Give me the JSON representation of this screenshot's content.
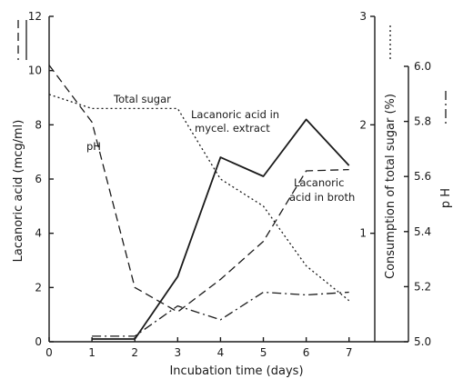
{
  "chart_data": {
    "type": "line",
    "title": "",
    "xlabel": "Incubation time (days)",
    "ylabel_left": "Lacanoric acid (mcg/ml)",
    "ylabel_right1": "Consumption of total sugar (%)",
    "ylabel_right2": "p H",
    "x_ticks": [
      0,
      1,
      2,
      3,
      4,
      5,
      6,
      7
    ],
    "xlim": [
      0,
      7.6
    ],
    "left_axis": {
      "ylim": [
        0,
        12
      ],
      "ticks": [
        0,
        2,
        4,
        6,
        8,
        10,
        12
      ]
    },
    "right1_axis": {
      "ylim": [
        0,
        3
      ],
      "ticks": [
        1,
        2,
        3
      ]
    },
    "right2_axis": {
      "ylim": [
        5.0,
        6.0
      ],
      "ticks": [
        "5.0",
        "5.2",
        "5.4",
        "5.6",
        "5.8",
        "6.0"
      ]
    },
    "grid": false,
    "series": [
      {
        "name": "Lacanoric acid in mycel. extract",
        "axis": "left",
        "style": "solid",
        "x": [
          1,
          2,
          3,
          4,
          5,
          6,
          7
        ],
        "y": [
          0.1,
          0.1,
          2.4,
          6.8,
          6.1,
          8.2,
          6.5
        ]
      },
      {
        "name": "Lacanoric acid in broth",
        "axis": "left",
        "style": "dashed",
        "x": [
          0,
          1,
          2,
          3,
          4,
          5,
          6,
          7
        ],
        "y": [
          10.2,
          8.1,
          2.0,
          1.1,
          2.3,
          3.7,
          6.3,
          6.35
        ]
      },
      {
        "name": "Total sugar",
        "axis": "right1",
        "style": "dotted",
        "x": [
          0,
          1,
          2,
          3,
          4,
          5,
          6,
          7
        ],
        "y": [
          2.28,
          2.15,
          2.15,
          2.15,
          1.5,
          1.25,
          0.7,
          0.38
        ]
      },
      {
        "name": "pH",
        "axis": "right2",
        "style": "dashdot",
        "x": [
          1,
          2,
          3,
          4,
          5,
          6,
          7
        ],
        "y": [
          5.02,
          5.02,
          5.13,
          5.08,
          5.18,
          5.17,
          5.18
        ]
      }
    ],
    "annotations": {
      "total_sugar": "Total sugar",
      "ph": "pH",
      "mycel_line1": "Lacanoric acid in",
      "mycel_line2": "mycel. extract",
      "broth_line1": "Lacanoric",
      "broth_line2": "acid in broth"
    }
  }
}
